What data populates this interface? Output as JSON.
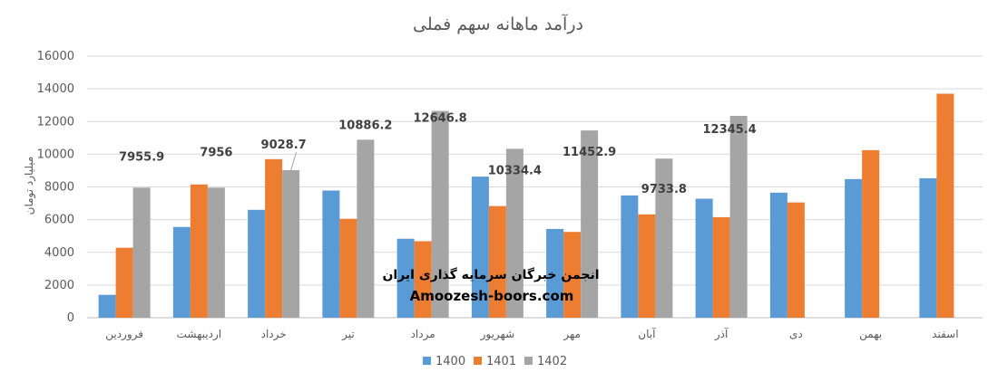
{
  "chart_data": {
    "type": "bar",
    "title": "درآمد ماهانه سهم فملی",
    "ylabel": "میلیارد تومان",
    "xlabel": "",
    "ylim": [
      0,
      16000
    ],
    "yticks": [
      0,
      2000,
      4000,
      6000,
      8000,
      10000,
      12000,
      14000,
      16000
    ],
    "grid": true,
    "legend_position": "bottom",
    "categories": [
      "فروردین",
      "اردیبهشت",
      "خرداد",
      "تیر",
      "مرداد",
      "شهریور",
      "مهر",
      "آبان",
      "آذر",
      "دی",
      "بهمن",
      "اسفند"
    ],
    "series": [
      {
        "name": "1400",
        "color": "#5B9BD5",
        "values": [
          1400,
          5550,
          6600,
          7780,
          4830,
          8630,
          5430,
          7480,
          7280,
          7650,
          8480,
          8530
        ]
      },
      {
        "name": "1401",
        "color": "#ED7D31",
        "values": [
          4280,
          8150,
          9700,
          6050,
          4680,
          6830,
          5250,
          6320,
          6150,
          7050,
          10250,
          13700
        ]
      },
      {
        "name": "1402",
        "color": "#A5A5A5",
        "values": [
          7955.9,
          7956,
          9028.7,
          10886.2,
          12646.8,
          10334.4,
          11452.9,
          9733.8,
          12345.4,
          null,
          null,
          null
        ]
      }
    ],
    "data_labels": {
      "series": "1402",
      "values": [
        "7955.9",
        "7956",
        "9028.7",
        "10886.2",
        "12646.8",
        "10334.4",
        "11452.9",
        "9733.8",
        "12345.4"
      ]
    },
    "watermark": {
      "line1": "انجمن خبرگان سرمایه گذاری ایران",
      "line2": "Amoozesh-boors.com"
    }
  }
}
